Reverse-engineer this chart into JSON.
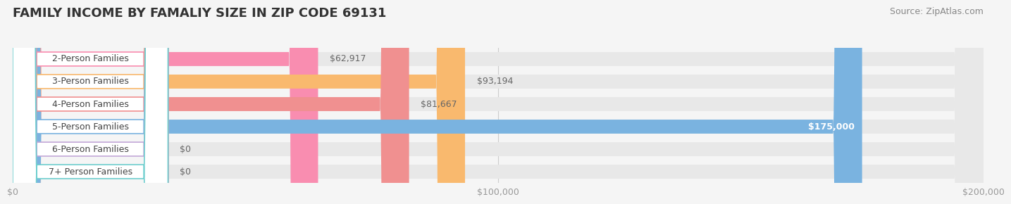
{
  "title": "FAMILY INCOME BY FAMALIY SIZE IN ZIP CODE 69131",
  "source": "Source: ZipAtlas.com",
  "categories": [
    "2-Person Families",
    "3-Person Families",
    "4-Person Families",
    "5-Person Families",
    "6-Person Families",
    "7+ Person Families"
  ],
  "values": [
    62917,
    93194,
    81667,
    175000,
    0,
    0
  ],
  "bar_colors": [
    "#f98db0",
    "#f9b96e",
    "#f09090",
    "#7ab3e0",
    "#c3a8d8",
    "#6ecece"
  ],
  "value_labels": [
    "$62,917",
    "$93,194",
    "$81,667",
    "$175,000",
    "$0",
    "$0"
  ],
  "xmax": 200000,
  "xticks": [
    0,
    100000,
    200000
  ],
  "xtick_labels": [
    "$0",
    "$100,000",
    "$200,000"
  ],
  "background_color": "#f5f5f5",
  "bar_bg_color": "#e8e8e8",
  "title_fontsize": 13,
  "source_fontsize": 9,
  "label_fontsize": 9,
  "value_fontsize": 9
}
